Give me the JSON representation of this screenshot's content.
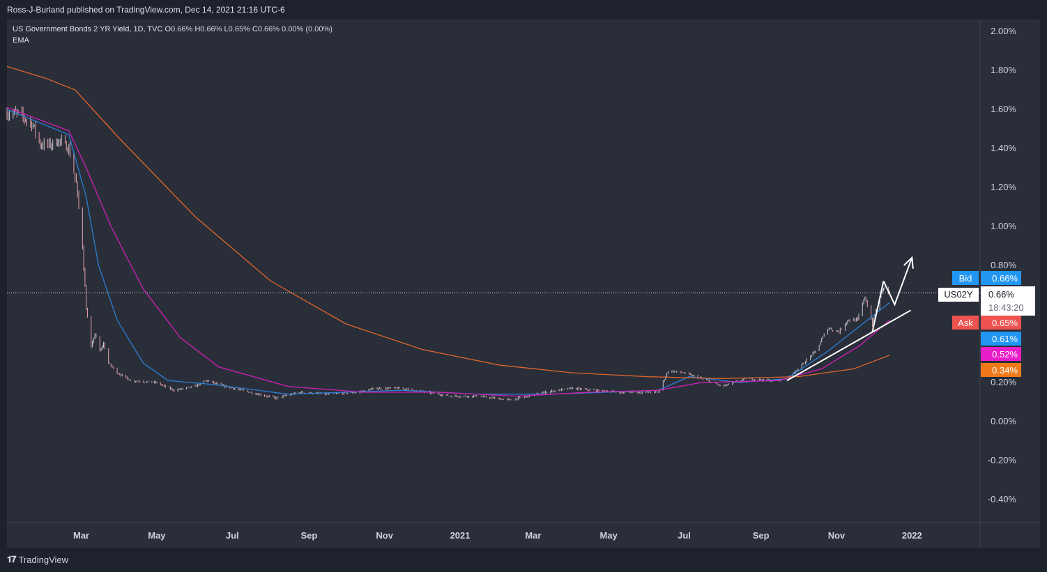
{
  "header": {
    "publisher": "Ross-J-Burland published on TradingView.com, Dec 14, 2021 21:16 UTC-6"
  },
  "legend": {
    "symbol": "US Government Bonds 2 YR Yield, 1D, TVC",
    "o_label": "O",
    "o_value": "0.66%",
    "h_label": "H",
    "h_value": "0.66%",
    "l_label": "L",
    "l_value": "0.65%",
    "c_label": "C",
    "c_value": "0.66%",
    "change": "0.00% (0.00%)",
    "indicator": "EMA"
  },
  "footer": {
    "brand": "TradingView"
  },
  "colors": {
    "background": "#1e222d",
    "pane": "#2a2e39",
    "candle_up": "#c8ccd6",
    "candle_down": "#e0a0a8",
    "ema_fast": "#2b7fd6",
    "ema_mid": "#d21fb8",
    "ema_slow": "#e0662a",
    "bid": "#2196f3",
    "ask": "#ef5350",
    "annotation": "#ffffff"
  },
  "chart_data": {
    "type": "line",
    "title": "US Government Bonds 2 YR Yield, 1D, TVC",
    "y_unit": "%",
    "ylim": [
      -0.5,
      2.05
    ],
    "y_ticks": [
      "2.00%",
      "1.80%",
      "1.60%",
      "1.40%",
      "1.20%",
      "1.00%",
      "0.80%",
      "0.20%",
      "0.00%",
      "-0.20%",
      "-0.40%"
    ],
    "y_tick_values": [
      2.0,
      1.8,
      1.6,
      1.4,
      1.2,
      1.0,
      0.8,
      0.2,
      0.0,
      -0.2,
      -0.4
    ],
    "x_range": [
      "2020-01-01",
      "2022-02-25"
    ],
    "x_ticks": [
      {
        "label": "Mar",
        "date": "2020-03-01",
        "bold": false
      },
      {
        "label": "May",
        "date": "2020-05-01",
        "bold": false
      },
      {
        "label": "Jul",
        "date": "2020-07-01",
        "bold": false
      },
      {
        "label": "Sep",
        "date": "2020-09-01",
        "bold": false
      },
      {
        "label": "Nov",
        "date": "2020-11-01",
        "bold": false
      },
      {
        "label": "2021",
        "date": "2021-01-01",
        "bold": true
      },
      {
        "label": "Mar",
        "date": "2021-03-01",
        "bold": false
      },
      {
        "label": "May",
        "date": "2021-05-01",
        "bold": false
      },
      {
        "label": "Jul",
        "date": "2021-07-01",
        "bold": false
      },
      {
        "label": "Sep",
        "date": "2021-09-01",
        "bold": false
      },
      {
        "label": "Nov",
        "date": "2021-11-01",
        "bold": false
      },
      {
        "label": "2022",
        "date": "2022-01-01",
        "bold": true
      }
    ],
    "series": [
      {
        "kind": "price",
        "color": "#c8ccd6",
        "points": [
          [
            "2020-01-01",
            1.58
          ],
          [
            "2020-01-10",
            1.58
          ],
          [
            "2020-01-22",
            1.52
          ],
          [
            "2020-01-28",
            1.42
          ],
          [
            "2020-02-05",
            1.42
          ],
          [
            "2020-02-12",
            1.44
          ],
          [
            "2020-02-20",
            1.4
          ],
          [
            "2020-02-26",
            1.22
          ],
          [
            "2020-03-02",
            0.9
          ],
          [
            "2020-03-05",
            0.58
          ],
          [
            "2020-03-09",
            0.38
          ],
          [
            "2020-03-12",
            0.45
          ],
          [
            "2020-03-16",
            0.36
          ],
          [
            "2020-03-19",
            0.4
          ],
          [
            "2020-03-23",
            0.3
          ],
          [
            "2020-03-30",
            0.25
          ],
          [
            "2020-04-10",
            0.21
          ],
          [
            "2020-04-30",
            0.2
          ],
          [
            "2020-05-15",
            0.16
          ],
          [
            "2020-06-01",
            0.18
          ],
          [
            "2020-06-10",
            0.21
          ],
          [
            "2020-06-25",
            0.18
          ],
          [
            "2020-07-15",
            0.15
          ],
          [
            "2020-08-05",
            0.12
          ],
          [
            "2020-08-25",
            0.15
          ],
          [
            "2020-09-15",
            0.14
          ],
          [
            "2020-10-10",
            0.15
          ],
          [
            "2020-10-25",
            0.17
          ],
          [
            "2020-11-15",
            0.17
          ],
          [
            "2020-12-05",
            0.15
          ],
          [
            "2020-12-25",
            0.13
          ],
          [
            "2021-01-15",
            0.13
          ],
          [
            "2021-02-10",
            0.11
          ],
          [
            "2021-02-25",
            0.13
          ],
          [
            "2021-03-10",
            0.15
          ],
          [
            "2021-04-01",
            0.17
          ],
          [
            "2021-04-20",
            0.16
          ],
          [
            "2021-05-10",
            0.15
          ],
          [
            "2021-06-10",
            0.15
          ],
          [
            "2021-06-18",
            0.26
          ],
          [
            "2021-06-30",
            0.25
          ],
          [
            "2021-07-15",
            0.22
          ],
          [
            "2021-08-01",
            0.18
          ],
          [
            "2021-08-20",
            0.22
          ],
          [
            "2021-09-10",
            0.21
          ],
          [
            "2021-09-22",
            0.22
          ],
          [
            "2021-10-01",
            0.27
          ],
          [
            "2021-10-15",
            0.36
          ],
          [
            "2021-10-25",
            0.48
          ],
          [
            "2021-11-03",
            0.46
          ],
          [
            "2021-11-10",
            0.52
          ],
          [
            "2021-11-18",
            0.52
          ],
          [
            "2021-11-24",
            0.64
          ],
          [
            "2021-11-30",
            0.5
          ],
          [
            "2021-12-05",
            0.62
          ],
          [
            "2021-12-09",
            0.69
          ],
          [
            "2021-12-14",
            0.66
          ]
        ]
      },
      {
        "kind": "ema",
        "color": "#2b7fd6",
        "points": [
          [
            "2020-01-01",
            1.6
          ],
          [
            "2020-02-20",
            1.47
          ],
          [
            "2020-03-05",
            1.15
          ],
          [
            "2020-03-15",
            0.8
          ],
          [
            "2020-03-30",
            0.52
          ],
          [
            "2020-04-20",
            0.3
          ],
          [
            "2020-05-10",
            0.21
          ],
          [
            "2020-06-15",
            0.19
          ],
          [
            "2020-08-15",
            0.14
          ],
          [
            "2020-11-15",
            0.16
          ],
          [
            "2021-01-15",
            0.14
          ],
          [
            "2021-03-15",
            0.14
          ],
          [
            "2021-06-10",
            0.16
          ],
          [
            "2021-07-05",
            0.23
          ],
          [
            "2021-08-15",
            0.2
          ],
          [
            "2021-09-22",
            0.22
          ],
          [
            "2021-10-25",
            0.36
          ],
          [
            "2021-11-20",
            0.49
          ],
          [
            "2021-12-14",
            0.61
          ]
        ]
      },
      {
        "kind": "ema",
        "color": "#d21fb8",
        "points": [
          [
            "2020-01-01",
            1.61
          ],
          [
            "2020-02-20",
            1.49
          ],
          [
            "2020-03-05",
            1.3
          ],
          [
            "2020-03-25",
            1.0
          ],
          [
            "2020-04-20",
            0.68
          ],
          [
            "2020-05-20",
            0.43
          ],
          [
            "2020-06-20",
            0.28
          ],
          [
            "2020-08-15",
            0.18
          ],
          [
            "2020-10-15",
            0.15
          ],
          [
            "2020-12-15",
            0.15
          ],
          [
            "2021-02-15",
            0.13
          ],
          [
            "2021-04-15",
            0.15
          ],
          [
            "2021-06-10",
            0.16
          ],
          [
            "2021-07-15",
            0.2
          ],
          [
            "2021-09-15",
            0.21
          ],
          [
            "2021-10-20",
            0.27
          ],
          [
            "2021-11-20",
            0.39
          ],
          [
            "2021-12-14",
            0.52
          ]
        ]
      },
      {
        "kind": "ema",
        "color": "#e0662a",
        "points": [
          [
            "2020-01-01",
            1.82
          ],
          [
            "2020-02-01",
            1.76
          ],
          [
            "2020-02-25",
            1.7
          ],
          [
            "2020-04-01",
            1.45
          ],
          [
            "2020-06-01",
            1.05
          ],
          [
            "2020-08-01",
            0.72
          ],
          [
            "2020-10-01",
            0.5
          ],
          [
            "2020-12-01",
            0.37
          ],
          [
            "2021-02-01",
            0.29
          ],
          [
            "2021-04-01",
            0.25
          ],
          [
            "2021-06-01",
            0.23
          ],
          [
            "2021-08-01",
            0.22
          ],
          [
            "2021-10-01",
            0.23
          ],
          [
            "2021-11-15",
            0.27
          ],
          [
            "2021-12-14",
            0.34
          ]
        ]
      }
    ],
    "annotations": {
      "trendline_long": [
        [
          "2021-09-22",
          0.21
        ],
        [
          "2021-12-31",
          0.57
        ]
      ],
      "trendline_short": [
        [
          "2021-11-30",
          0.46
        ],
        [
          "2021-12-09",
          0.72
        ]
      ],
      "zigzag": [
        [
          "2021-12-09",
          0.72
        ],
        [
          "2021-12-18",
          0.6
        ],
        [
          "2022-01-01",
          0.84
        ]
      ],
      "current_price_line": 0.66
    },
    "price_labels": [
      {
        "name": "bid-label",
        "tag": "Bid",
        "value": "0.66%",
        "price": 0.665,
        "tag_bg": "#2196f3",
        "bg": "#2196f3",
        "fg": "#ffffff"
      },
      {
        "name": "current-price-label",
        "tag": "US02Y",
        "value": "0.66%",
        "time": "18:43:20",
        "price": 0.66,
        "tag_bg": "#ffffff",
        "bg": "#ffffff",
        "fg": "#131722"
      },
      {
        "name": "ask-label",
        "tag": "Ask",
        "value": "0.65%",
        "price": 0.52,
        "tag_bg": "#ef5350",
        "bg": "#ef5350",
        "fg": "#ffffff"
      },
      {
        "name": "ema-fast-label",
        "tag": "",
        "value": "0.61%",
        "price": 0.44,
        "tag_bg": "",
        "bg": "#2196f3",
        "fg": "#ffffff"
      },
      {
        "name": "ema-mid-label",
        "tag": "",
        "value": "0.52%",
        "price": 0.36,
        "tag_bg": "",
        "bg": "#e91ec8",
        "fg": "#ffffff"
      },
      {
        "name": "ema-slow-label",
        "tag": "",
        "value": "0.34%",
        "price": 0.28,
        "tag_bg": "",
        "bg": "#f07a1a",
        "fg": "#ffffff"
      }
    ]
  }
}
